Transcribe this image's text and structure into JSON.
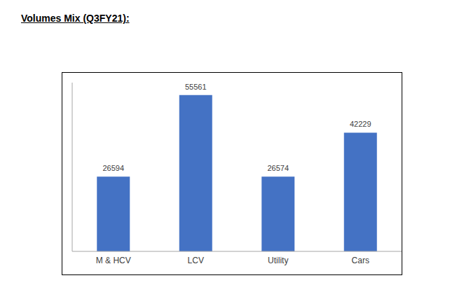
{
  "chart_data": {
    "type": "bar",
    "title": "Volumes Mix (Q3FY21):",
    "categories": [
      "M & HCV",
      "LCV",
      "Utility",
      "Cars"
    ],
    "values": [
      26594,
      55561,
      26574,
      42229
    ],
    "color": "#4472c4",
    "ylim": [
      0,
      60000
    ],
    "grid": false,
    "data_labels": true,
    "tick_labels": "x"
  }
}
